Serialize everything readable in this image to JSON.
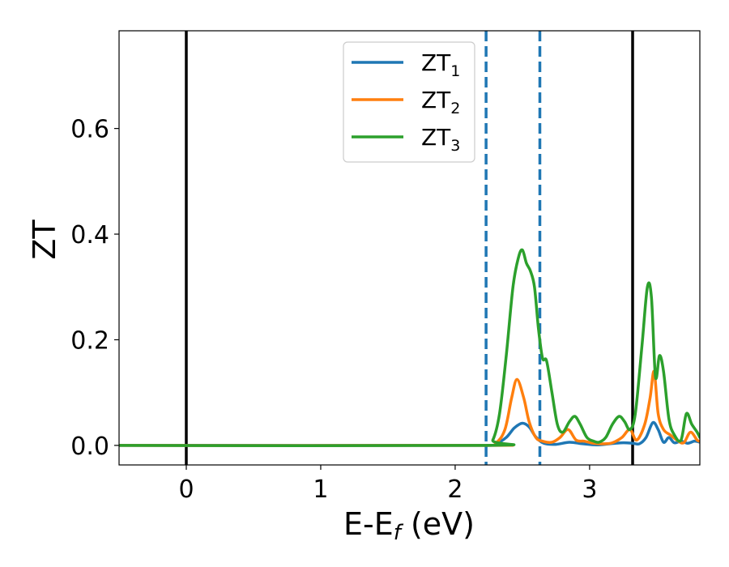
{
  "chart_data": {
    "type": "line",
    "title": "",
    "xlabel": "E-E",
    "xlabel_sub": "f",
    "xlabel_unit": " (eV)",
    "ylabel": "ZT",
    "xlim": [
      -0.5,
      3.82
    ],
    "ylim": [
      -0.037,
      0.785
    ],
    "xticks": [
      0,
      1,
      2,
      3
    ],
    "yticks": [
      0.0,
      0.2,
      0.4,
      0.6
    ],
    "xtick_labels": [
      "0",
      "1",
      "2",
      "3"
    ],
    "ytick_labels": [
      "0.0",
      "0.2",
      "0.4",
      "0.6"
    ],
    "grid": false,
    "legend_position": "upper-center",
    "vertical_lines": [
      {
        "x": 0.0,
        "style": "solid",
        "color": "#000000"
      },
      {
        "x": 2.23,
        "style": "dashed",
        "color": "#1f77b4"
      },
      {
        "x": 2.63,
        "style": "dashed",
        "color": "#1f77b4"
      },
      {
        "x": 3.32,
        "style": "solid",
        "color": "#000000"
      }
    ],
    "series": [
      {
        "name": "ZT",
        "name_sub": "1",
        "color": "#1f77b4",
        "x": [
          -0.5,
          2.2,
          2.3,
          2.38,
          2.44,
          2.5,
          2.55,
          2.6,
          2.66,
          2.75,
          2.85,
          2.95,
          3.05,
          3.15,
          3.25,
          3.32,
          3.37,
          3.42,
          3.47,
          3.51,
          3.55,
          3.59,
          3.63,
          3.68,
          3.73,
          3.78,
          3.82
        ],
        "y": [
          0.0,
          0.0,
          0.003,
          0.015,
          0.033,
          0.042,
          0.035,
          0.016,
          0.004,
          0.002,
          0.006,
          0.003,
          0.001,
          0.003,
          0.005,
          0.004,
          0.003,
          0.015,
          0.043,
          0.03,
          0.006,
          0.015,
          0.005,
          0.008,
          0.004,
          0.008,
          0.006
        ]
      },
      {
        "name": "ZT",
        "name_sub": "2",
        "color": "#ff7f0e",
        "x": [
          -0.5,
          2.2,
          2.3,
          2.37,
          2.42,
          2.46,
          2.51,
          2.55,
          2.6,
          2.65,
          2.72,
          2.78,
          2.84,
          2.9,
          2.96,
          3.03,
          3.1,
          3.17,
          3.24,
          3.3,
          3.35,
          3.41,
          3.45,
          3.48,
          3.51,
          3.55,
          3.6,
          3.65,
          3.7,
          3.75,
          3.8,
          3.82
        ],
        "y": [
          0.0,
          0.0,
          0.004,
          0.03,
          0.09,
          0.125,
          0.09,
          0.045,
          0.015,
          0.008,
          0.006,
          0.015,
          0.03,
          0.01,
          0.008,
          0.004,
          0.003,
          0.005,
          0.015,
          0.03,
          0.01,
          0.04,
          0.09,
          0.14,
          0.06,
          0.03,
          0.02,
          0.01,
          0.005,
          0.025,
          0.01,
          0.008
        ]
      },
      {
        "name": "ZT",
        "name_sub": "3",
        "color": "#2ca02c",
        "x": [
          -0.5,
          2.22,
          2.28,
          2.33,
          2.38,
          2.43,
          2.47,
          2.5,
          2.53,
          2.56,
          2.59,
          2.62,
          2.65,
          2.68,
          2.72,
          2.76,
          2.8,
          2.85,
          2.89,
          2.93,
          2.98,
          3.03,
          3.07,
          3.12,
          3.17,
          3.22,
          3.26,
          3.3,
          3.34,
          3.39,
          3.43,
          3.46,
          3.49,
          3.52,
          3.55,
          3.59,
          3.63,
          3.68,
          3.72,
          3.76,
          3.8,
          3.82
        ],
        "y": [
          0.0,
          0.0,
          0.01,
          0.06,
          0.17,
          0.3,
          0.355,
          0.37,
          0.345,
          0.33,
          0.3,
          0.22,
          0.165,
          0.16,
          0.1,
          0.04,
          0.025,
          0.045,
          0.055,
          0.04,
          0.015,
          0.008,
          0.006,
          0.015,
          0.04,
          0.055,
          0.045,
          0.03,
          0.06,
          0.19,
          0.3,
          0.28,
          0.13,
          0.17,
          0.14,
          0.05,
          0.02,
          0.01,
          0.06,
          0.04,
          0.025,
          0.015
        ]
      }
    ]
  }
}
